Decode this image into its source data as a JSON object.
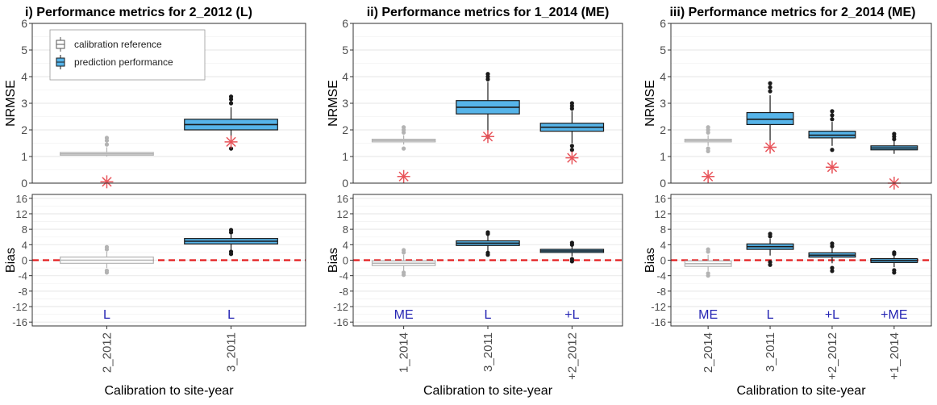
{
  "chart_data": [
    {
      "type": "boxplot",
      "title": "i) Performance metrics for 2_2012 (L)",
      "xlabel": "Calibration to site-year",
      "categories": [
        "2_2012",
        "3_2011"
      ],
      "category_tags": [
        "L",
        "L"
      ],
      "series": [
        {
          "name": "calibration reference",
          "category": "2_2012"
        },
        {
          "name": "prediction performance",
          "category": "3_2011"
        }
      ],
      "nrmse": {
        "ylabel": "NRMSE",
        "ylim": [
          0,
          6
        ],
        "ticks": [
          "0",
          "1",
          "2",
          "3",
          "4",
          "5",
          "6"
        ],
        "boxes": [
          {
            "category": "2_2012",
            "series": "calibration reference",
            "q1": 1.05,
            "median": 1.1,
            "q3": 1.15,
            "whisker_low": 1.0,
            "whisker_high": 1.35,
            "outliers_low": [],
            "outliers_high": [
              1.45,
              1.6,
              1.7
            ],
            "marker": 0.05
          },
          {
            "category": "3_2011",
            "series": "prediction performance",
            "q1": 2.0,
            "median": 2.2,
            "q3": 2.4,
            "whisker_low": 1.5,
            "whisker_high": 2.85,
            "outliers_low": [
              1.3
            ],
            "outliers_high": [
              3.0,
              3.15,
              3.25
            ],
            "marker": 1.55
          }
        ]
      },
      "bias": {
        "ylabel": "Bias",
        "ylim": [
          -17,
          17
        ],
        "ticks": [
          "-16",
          "-12",
          "-8",
          "-4",
          "0",
          "4",
          "8",
          "12",
          "16"
        ],
        "boxes": [
          {
            "category": "2_2012",
            "series": "calibration reference",
            "q1": -0.8,
            "median": 0,
            "q3": 0.8,
            "whisker_low": -2.0,
            "whisker_high": 2.2,
            "outliers_low": [
              -3.2,
              -2.7
            ],
            "outliers_high": [
              2.8,
              3.4
            ]
          },
          {
            "category": "3_2011",
            "series": "prediction performance",
            "q1": 4.2,
            "median": 4.9,
            "q3": 5.6,
            "whisker_low": 2.7,
            "whisker_high": 6.6,
            "outliers_low": [
              1.6,
              2.2
            ],
            "outliers_high": [
              7.2,
              7.8
            ]
          }
        ]
      },
      "legend": {
        "placement": "top-left",
        "entries": [
          "calibration reference",
          "prediction performance"
        ]
      }
    },
    {
      "type": "boxplot",
      "title": "ii) Performance metrics for 1_2014 (ME)",
      "xlabel": "Calibration to site-year",
      "categories": [
        "1_2014",
        "3_2011",
        "+2_2012"
      ],
      "category_tags": [
        "ME",
        "L",
        "+L"
      ],
      "nrmse": {
        "ylabel": "NRMSE",
        "ylim": [
          0,
          6
        ],
        "ticks": [
          "0",
          "1",
          "2",
          "3",
          "4",
          "5",
          "6"
        ],
        "boxes": [
          {
            "category": "1_2014",
            "series": "calibration reference",
            "q1": 1.55,
            "median": 1.6,
            "q3": 1.65,
            "whisker_low": 1.45,
            "whisker_high": 1.8,
            "outliers_low": [
              1.3
            ],
            "outliers_high": [
              1.9,
              2.0,
              2.1
            ],
            "marker": 0.25
          },
          {
            "category": "3_2011",
            "series": "prediction performance",
            "q1": 2.6,
            "median": 2.85,
            "q3": 3.1,
            "whisker_low": 1.9,
            "whisker_high": 3.8,
            "outliers_low": [
              1.75
            ],
            "outliers_high": [
              3.9,
              4.0,
              4.1
            ],
            "marker": 1.75
          },
          {
            "category": "+2_2012",
            "series": "prediction performance",
            "q1": 1.95,
            "median": 2.1,
            "q3": 2.25,
            "whisker_low": 1.5,
            "whisker_high": 2.7,
            "outliers_low": [
              1.25,
              1.4
            ],
            "outliers_high": [
              2.8,
              2.9,
              3.0
            ],
            "marker": 0.95
          }
        ]
      },
      "bias": {
        "ylabel": "Bias",
        "ylim": [
          -17,
          17
        ],
        "ticks": [
          "-16",
          "-12",
          "-8",
          "-4",
          "0",
          "4",
          "8",
          "12",
          "16"
        ],
        "boxes": [
          {
            "category": "1_2014",
            "series": "calibration reference",
            "q1": -1.4,
            "median": -0.8,
            "q3": -0.2,
            "whisker_low": -2.8,
            "whisker_high": 1.4,
            "outliers_low": [
              -3.8,
              -3.2
            ],
            "outliers_high": [
              2.0,
              2.6
            ]
          },
          {
            "category": "3_2011",
            "series": "prediction performance",
            "q1": 3.8,
            "median": 4.4,
            "q3": 5.0,
            "whisker_low": 2.4,
            "whisker_high": 6.4,
            "outliers_low": [
              1.4,
              1.9
            ],
            "outliers_high": [
              6.8,
              7.2
            ]
          },
          {
            "category": "+2_2012",
            "series": "prediction performance",
            "q1": 2.0,
            "median": 2.4,
            "q3": 2.8,
            "whisker_low": 1.0,
            "whisker_high": 3.6,
            "outliers_low": [
              -0.3,
              0.3
            ],
            "outliers_high": [
              4.0,
              4.5
            ]
          }
        ]
      }
    },
    {
      "type": "boxplot",
      "title": "iii) Performance metrics for 2_2014 (ME)",
      "xlabel": "Calibration to site-year",
      "categories": [
        "2_2014",
        "3_2011",
        "+2_2012",
        "+1_2014"
      ],
      "category_tags": [
        "ME",
        "L",
        "+L",
        "+ME"
      ],
      "nrmse": {
        "ylabel": "NRMSE",
        "ylim": [
          0,
          6
        ],
        "ticks": [
          "0",
          "1",
          "2",
          "3",
          "4",
          "5",
          "6"
        ],
        "boxes": [
          {
            "category": "2_2014",
            "series": "calibration reference",
            "q1": 1.55,
            "median": 1.6,
            "q3": 1.65,
            "whisker_low": 1.4,
            "whisker_high": 1.8,
            "outliers_low": [
              1.2,
              1.3
            ],
            "outliers_high": [
              1.9,
              2.0,
              2.1
            ],
            "marker": 0.25
          },
          {
            "category": "3_2011",
            "series": "prediction performance",
            "q1": 2.2,
            "median": 2.4,
            "q3": 2.65,
            "whisker_low": 1.6,
            "whisker_high": 3.3,
            "outliers_low": [],
            "outliers_high": [
              3.45,
              3.6,
              3.75
            ],
            "marker": 1.35
          },
          {
            "category": "+2_2012",
            "series": "prediction performance",
            "q1": 1.7,
            "median": 1.8,
            "q3": 1.95,
            "whisker_low": 1.4,
            "whisker_high": 2.3,
            "outliers_low": [
              1.25
            ],
            "outliers_high": [
              2.4,
              2.55,
              2.7
            ],
            "marker": 0.6
          },
          {
            "category": "+1_2014",
            "series": "prediction performance",
            "q1": 1.25,
            "median": 1.32,
            "q3": 1.4,
            "whisker_low": 1.1,
            "whisker_high": 1.6,
            "outliers_low": [],
            "outliers_high": [
              1.65,
              1.75,
              1.85
            ],
            "marker": 0.0
          }
        ]
      },
      "bias": {
        "ylabel": "Bias",
        "ylim": [
          -17,
          17
        ],
        "ticks": [
          "-16",
          "-12",
          "-8",
          "-4",
          "0",
          "4",
          "8",
          "12",
          "16"
        ],
        "boxes": [
          {
            "category": "2_2014",
            "series": "calibration reference",
            "q1": -1.6,
            "median": -0.9,
            "q3": -0.2,
            "whisker_low": -2.8,
            "whisker_high": 1.4,
            "outliers_low": [
              -4.0,
              -3.4
            ],
            "outliers_high": [
              2.2,
              2.8
            ]
          },
          {
            "category": "3_2011",
            "series": "prediction performance",
            "q1": 2.8,
            "median": 3.5,
            "q3": 4.2,
            "whisker_low": 1.2,
            "whisker_high": 5.6,
            "outliers_low": [
              -1.2,
              -0.5
            ],
            "outliers_high": [
              6.2,
              6.8
            ]
          },
          {
            "category": "+2_2012",
            "series": "prediction performance",
            "q1": 0.8,
            "median": 1.3,
            "q3": 1.9,
            "whisker_low": -0.8,
            "whisker_high": 3.0,
            "outliers_low": [
              -2.8,
              -2.0
            ],
            "outliers_high": [
              3.6,
              4.3
            ]
          },
          {
            "category": "+1_2014",
            "series": "prediction performance",
            "q1": -0.6,
            "median": -0.1,
            "q3": 0.4,
            "whisker_low": -1.8,
            "whisker_high": 1.4,
            "outliers_low": [
              -3.2,
              -2.6
            ],
            "outliers_high": [
              1.6,
              2.0
            ]
          }
        ]
      }
    }
  ],
  "colors": {
    "reference_fill": "#ffffff",
    "reference_stroke": "#b3b3b3",
    "prediction_fill": "#56b4e9",
    "prediction_stroke": "#1a1a1a",
    "marker": "#e8545a",
    "zero_line": "#e31a1c",
    "tag_text": "#2424b3",
    "grid": "#ebebeb",
    "axis_text": "#4d4d4d"
  }
}
